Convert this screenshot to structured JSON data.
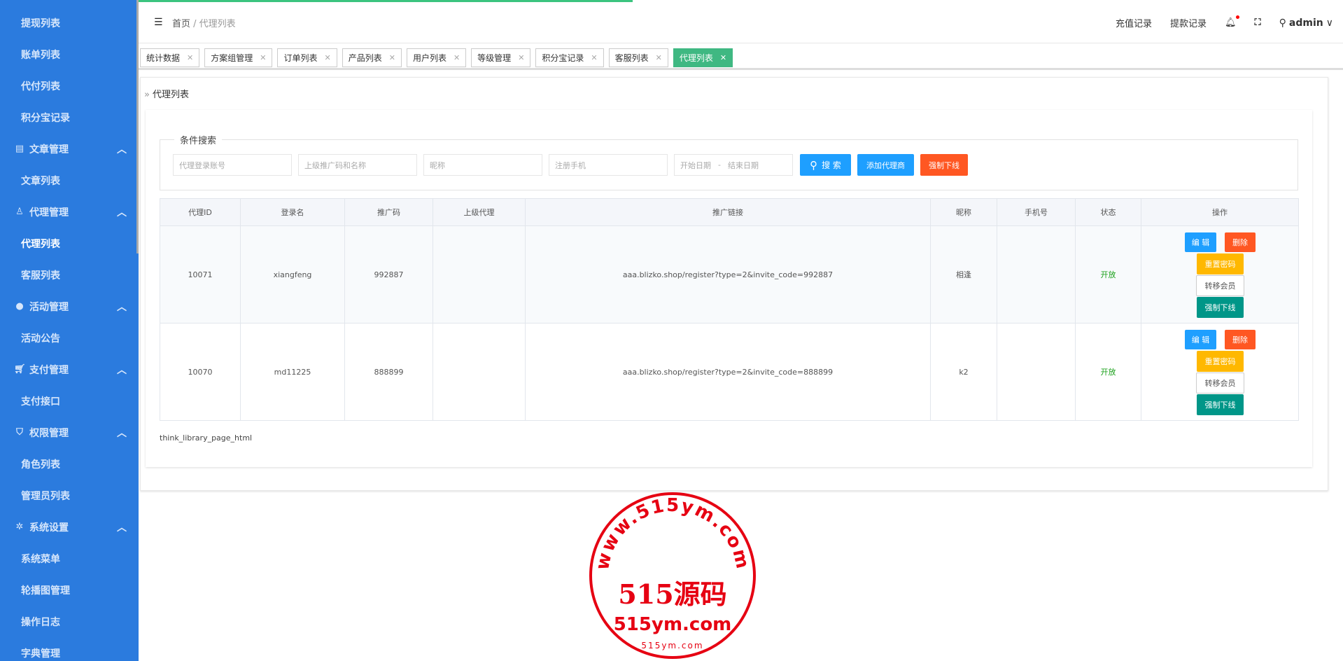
{
  "sidebar": {
    "items": [
      {
        "label": "提现列表",
        "type": "child"
      },
      {
        "label": "账单列表",
        "type": "child"
      },
      {
        "label": "代付列表",
        "type": "child"
      },
      {
        "label": "积分宝记录",
        "type": "child"
      },
      {
        "label": "文章管理",
        "type": "group",
        "icon": "document-icon"
      },
      {
        "label": "文章列表",
        "type": "child"
      },
      {
        "label": "代理管理",
        "type": "group",
        "icon": "user-icon"
      },
      {
        "label": "代理列表",
        "type": "child",
        "active": true
      },
      {
        "label": "客服列表",
        "type": "child"
      },
      {
        "label": "活动管理",
        "type": "group",
        "icon": "compass-icon"
      },
      {
        "label": "活动公告",
        "type": "child"
      },
      {
        "label": "支付管理",
        "type": "group",
        "icon": "cart-icon"
      },
      {
        "label": "支付接口",
        "type": "child"
      },
      {
        "label": "权限管理",
        "type": "group",
        "icon": "shield-icon"
      },
      {
        "label": "角色列表",
        "type": "child"
      },
      {
        "label": "管理员列表",
        "type": "child"
      },
      {
        "label": "系统设置",
        "type": "group",
        "icon": "gear-icon"
      },
      {
        "label": "系统菜单",
        "type": "child"
      },
      {
        "label": "轮播图管理",
        "type": "child"
      },
      {
        "label": "操作日志",
        "type": "child"
      },
      {
        "label": "字典管理",
        "type": "child"
      }
    ]
  },
  "header": {
    "breadcrumb_home": "首页",
    "breadcrumb_sep": " / ",
    "breadcrumb_current": "代理列表",
    "recharge": "充值记录",
    "withdraw": "提款记录",
    "user": "admin"
  },
  "tabs": [
    {
      "label": "统计数据"
    },
    {
      "label": "方案组管理"
    },
    {
      "label": "订单列表"
    },
    {
      "label": "产品列表"
    },
    {
      "label": "用户列表"
    },
    {
      "label": "等级管理"
    },
    {
      "label": "积分宝记录"
    },
    {
      "label": "客服列表"
    },
    {
      "label": "代理列表",
      "active": true
    }
  ],
  "page": {
    "title": "代理列表",
    "legend": "条件搜索",
    "pagination": "think_library_page_html"
  },
  "search": {
    "account_placeholder": "代理登录账号",
    "parent_placeholder": "上级推广码和名称",
    "nickname_placeholder": "昵称",
    "phone_placeholder": "注册手机",
    "start_date": "开始日期",
    "date_sep": "-",
    "end_date": "结束日期",
    "search_btn": "搜 索",
    "add_btn": "添加代理商",
    "offline_btn": "强制下线"
  },
  "table": {
    "columns": [
      "代理ID",
      "登录名",
      "推广码",
      "上级代理",
      "推广链接",
      "昵称",
      "手机号",
      "状态",
      "操作"
    ],
    "rows": [
      {
        "id": "10071",
        "login": "xiangfeng",
        "code": "992887",
        "parent": "",
        "link": "aaa.blizko.shop/register?type=2&invite_code=992887",
        "nickname": "相逢",
        "phone": "",
        "status": "开放"
      },
      {
        "id": "10070",
        "login": "md11225",
        "code": "888899",
        "parent": "",
        "link": "aaa.blizko.shop/register?type=2&invite_code=888899",
        "nickname": "k2",
        "phone": "",
        "status": "开放"
      }
    ],
    "actions": {
      "edit": "编 辑",
      "delete": "删除",
      "reset": "重置密码",
      "transfer": "转移会员",
      "offline": "强制下线"
    }
  },
  "watermark": {
    "arc": "www.515ym.com",
    "main": "515源码",
    "sub": "515ym.com",
    "bottom": "515ym.com"
  },
  "colors": {
    "sidebar": "#2b7bde",
    "primary": "#1e9fff",
    "danger": "#ff5722",
    "warn": "#ffb800",
    "teal": "#009688",
    "active_tab": "#3fb882",
    "status": "#1aa01a",
    "stamp": "#e60012"
  }
}
